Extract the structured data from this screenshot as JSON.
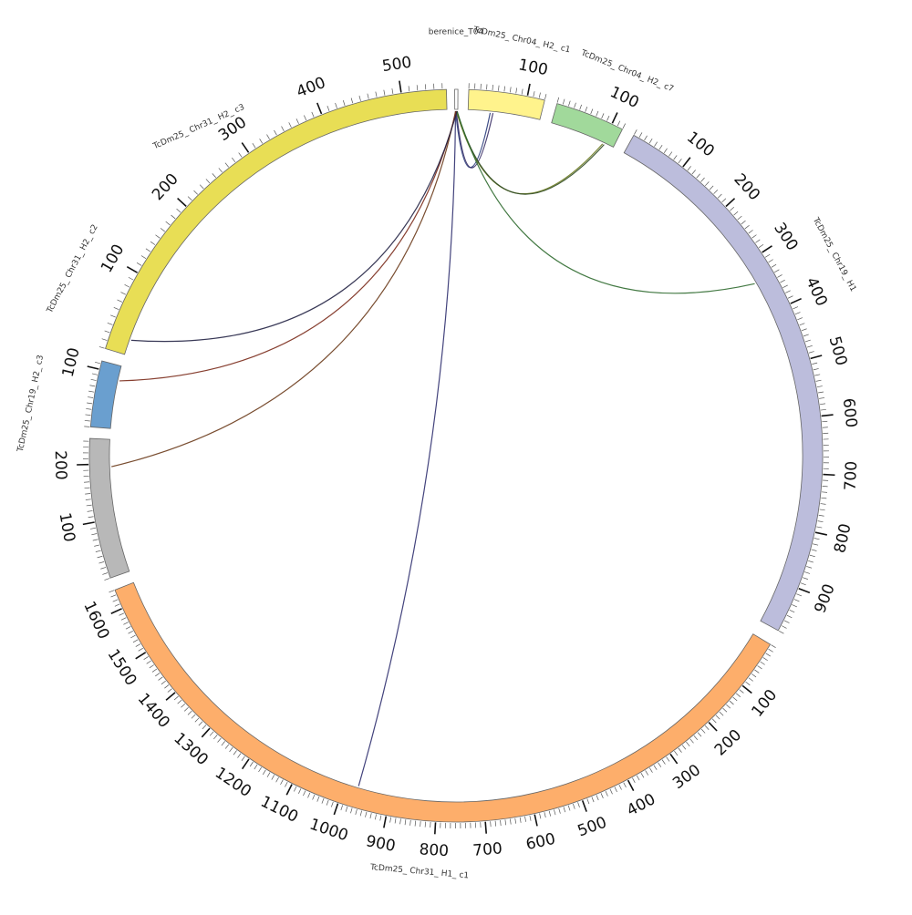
{
  "segments": [
    {
      "id": "berenice_t04",
      "label": "berenice_T04",
      "color": "#ffffff",
      "length": 4,
      "ticks": []
    },
    {
      "id": "chr04_h2_c1",
      "label": "TcDm25_ Chr04_ H2_ c1",
      "color": "#fff38c",
      "length": 130,
      "ticks": [
        100
      ]
    },
    {
      "id": "chr04_h2_c7",
      "label": "TcDm25_ Chr04_ H2_ c7",
      "color": "#a1d99b",
      "length": 120,
      "ticks": [
        100
      ]
    },
    {
      "id": "chr19_h1",
      "label": "TcDm25_ Chr19_ H1",
      "color": "#bcbddc",
      "length": 980,
      "ticks": [
        100,
        200,
        300,
        400,
        500,
        600,
        700,
        800,
        900
      ]
    },
    {
      "id": "chr31_h1_c1",
      "label": "TcDm25_ Chr31_ H1_ c1",
      "color": "#fdae6b",
      "length": 1640,
      "ticks": [
        100,
        200,
        300,
        400,
        500,
        600,
        700,
        800,
        900,
        1000,
        1100,
        1200,
        1300,
        1400,
        1500,
        1600
      ]
    },
    {
      "id": "chr19_h2_c3",
      "label": "TcDm25_ Chr19_ H2_ c3",
      "color": "#b8b8b8",
      "length": 245,
      "ticks": [
        100,
        200
      ]
    },
    {
      "id": "chr31_h2_c2",
      "label": "TcDm25_ Chr31_ H2_ c2",
      "color": "#6a9fcf",
      "length": 115,
      "ticks": [
        100
      ]
    },
    {
      "id": "chr31_h2_c3",
      "label": "TcDm25_ Chr31_ H2_ c3",
      "color": "#e8de55",
      "length": 555,
      "ticks": [
        100,
        200,
        300,
        400,
        500
      ]
    }
  ],
  "links": [
    {
      "from": "berenice_t04",
      "from_pos": 1,
      "to": "chr04_h2_c1",
      "to_pos": 40,
      "color": "#283a7a"
    },
    {
      "from": "berenice_t04",
      "from_pos": 2,
      "to": "chr04_h2_c1",
      "to_pos": 45,
      "color": "#3a2f66"
    },
    {
      "from": "berenice_t04",
      "from_pos": 2,
      "to": "chr04_h2_c7",
      "to_pos": 100,
      "color": "#6b7a20"
    },
    {
      "from": "berenice_t04",
      "from_pos": 3,
      "to": "chr04_h2_c7",
      "to_pos": 103,
      "color": "#2f4a22"
    },
    {
      "from": "berenice_t04",
      "from_pos": 3,
      "to": "chr19_h1",
      "to_pos": 340,
      "color": "#2f6a2f"
    },
    {
      "from": "berenice_t04",
      "from_pos": 1,
      "to": "chr31_h1_c1",
      "to_pos": 970,
      "color": "#2e2e6e"
    },
    {
      "from": "berenice_t04",
      "from_pos": 1,
      "to": "chr19_h2_c3",
      "to_pos": 195,
      "color": "#6a3a1a"
    },
    {
      "from": "berenice_t04",
      "from_pos": 2,
      "to": "chr31_h2_c2",
      "to_pos": 88,
      "color": "#7a2a1a"
    },
    {
      "from": "berenice_t04",
      "from_pos": 3,
      "to": "chr31_h2_c3",
      "to_pos": 20,
      "color": "#222244"
    }
  ]
}
